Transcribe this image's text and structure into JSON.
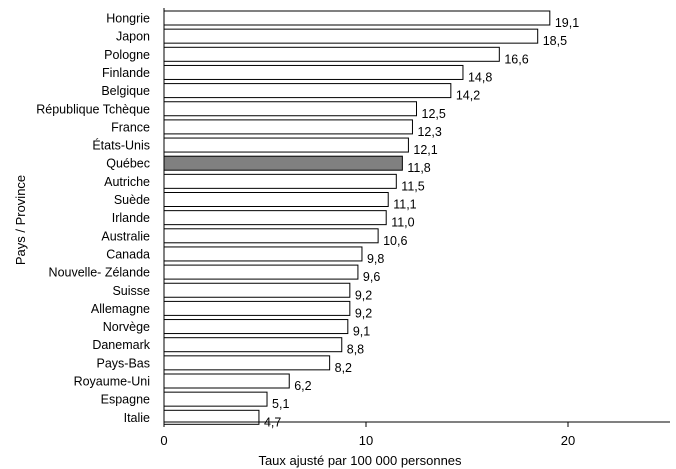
{
  "chart_data": {
    "type": "bar",
    "orientation": "horizontal",
    "categories": [
      "Hongrie",
      "Japon",
      "Pologne",
      "Finlande",
      "Belgique",
      "République Tchèque",
      "France",
      "États-Unis",
      "Québec",
      "Autriche",
      "Suède",
      "Irlande",
      "Australie",
      "Canada",
      "Nouvelle- Zélande",
      "Suisse",
      "Allemagne",
      "Norvège",
      "Danemark",
      "Pays-Bas",
      "Royaume-Uni",
      "Espagne",
      "Italie"
    ],
    "values": [
      19.1,
      18.5,
      16.6,
      14.8,
      14.2,
      12.5,
      12.3,
      12.1,
      11.8,
      11.5,
      11.1,
      11.0,
      10.6,
      9.8,
      9.6,
      9.2,
      9.2,
      9.1,
      8.8,
      8.2,
      6.2,
      5.1,
      4.7
    ],
    "value_labels": [
      "19,1",
      "18,5",
      "16,6",
      "14,8",
      "14,2",
      "12,5",
      "12,3",
      "12,1",
      "11,8",
      "11,5",
      "11,1",
      "11,0",
      "10,6",
      "9,8",
      "9,6",
      "9,2",
      "9,2",
      "9,1",
      "8,8",
      "8,2",
      "6,2",
      "5,1",
      "4,7"
    ],
    "highlight_category": "Québec",
    "xlabel": "Taux ajusté par 100 000 personnes",
    "ylabel": "Pays / Province",
    "xlim": [
      0,
      25
    ],
    "xticks": [
      0,
      10,
      20
    ],
    "grid": false,
    "colors": {
      "bar_fill": "#ffffff",
      "bar_stroke": "#000000",
      "highlight_fill": "#808080"
    }
  }
}
